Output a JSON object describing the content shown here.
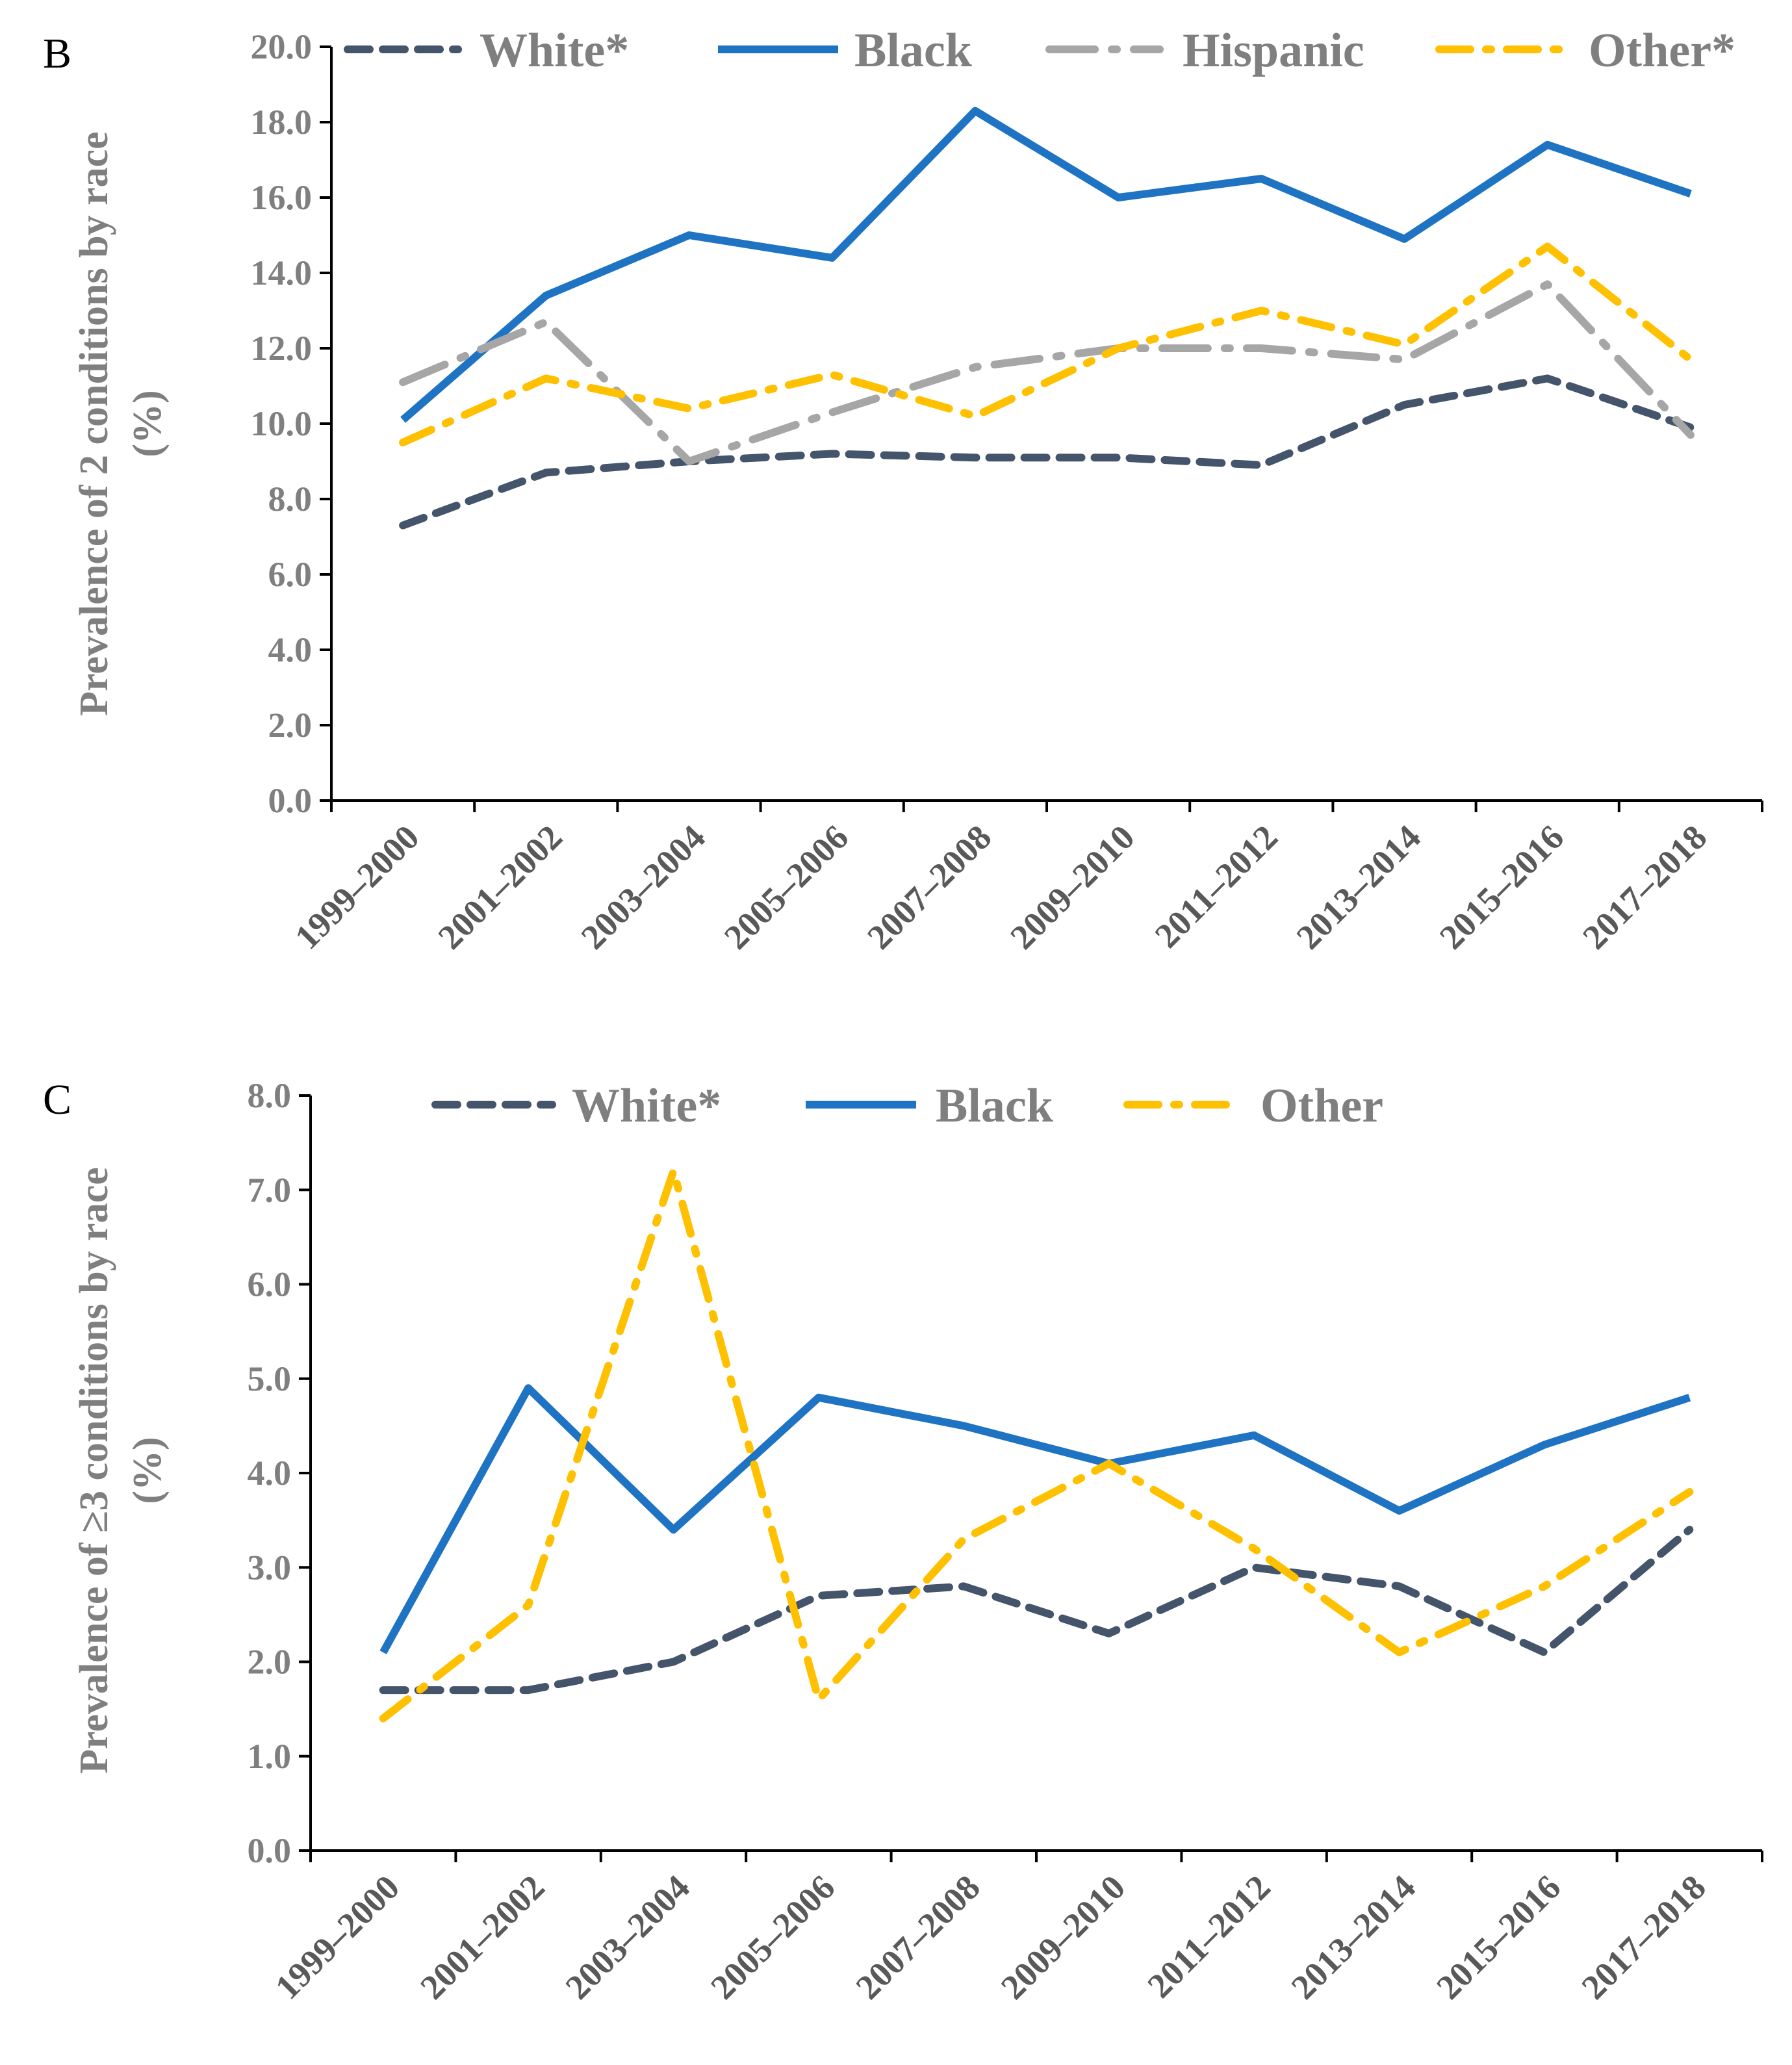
{
  "chart_data": [
    {
      "type": "line",
      "panel_label": "B",
      "title": "",
      "xlabel": "",
      "ylabel": "Prevalence of 2 conditions by race",
      "ylabel_unit": "(%)",
      "ylim": [
        0,
        20
      ],
      "y_ticks": [
        "0.0",
        "2.0",
        "4.0",
        "6.0",
        "8.0",
        "10.0",
        "12.0",
        "14.0",
        "16.0",
        "18.0",
        "20.0"
      ],
      "categories": [
        "1999–2000",
        "2001–2002",
        "2003–2004",
        "2005–2006",
        "2007–2008",
        "2009–2010",
        "2011–2012",
        "2013–2014",
        "2015–2016",
        "2017–2018"
      ],
      "grid": false,
      "legend_position": "top",
      "series": [
        {
          "name": "White*",
          "color": "#44546a",
          "style": "dash",
          "values": [
            7.3,
            8.7,
            9.0,
            9.2,
            9.1,
            9.1,
            8.9,
            10.5,
            11.2,
            9.9
          ]
        },
        {
          "name": "Black",
          "color": "#1f73c3",
          "style": "solid",
          "values": [
            10.1,
            13.4,
            15.0,
            14.4,
            18.3,
            16.0,
            16.5,
            14.9,
            17.4,
            16.1
          ]
        },
        {
          "name": "Hispanic",
          "color": "#a6a6a6",
          "style": "longdashdot",
          "values": [
            11.1,
            12.7,
            9.0,
            10.3,
            11.5,
            12.0,
            12.0,
            11.7,
            13.7,
            9.7
          ]
        },
        {
          "name": "Other*",
          "color": "#ffc000",
          "style": "dashdot",
          "values": [
            9.5,
            11.2,
            10.4,
            11.3,
            10.2,
            12.0,
            13.0,
            12.1,
            14.7,
            11.7
          ]
        }
      ]
    },
    {
      "type": "line",
      "panel_label": "C",
      "title": "",
      "xlabel": "",
      "ylabel": "Prevalence of ≥3 conditions by race",
      "ylabel_unit": "(%)",
      "ylim": [
        0,
        8
      ],
      "y_ticks": [
        "0.0",
        "1.0",
        "2.0",
        "3.0",
        "4.0",
        "5.0",
        "6.0",
        "7.0",
        "8.0"
      ],
      "categories": [
        "1999–2000",
        "2001–2002",
        "2003–2004",
        "2005–2006",
        "2007–2008",
        "2009–2010",
        "2011–2012",
        "2013–2014",
        "2015–2016",
        "2017–2018"
      ],
      "grid": false,
      "legend_position": "top",
      "series": [
        {
          "name": "White*",
          "color": "#44546a",
          "style": "dash",
          "values": [
            1.7,
            1.7,
            2.0,
            2.7,
            2.8,
            2.3,
            3.0,
            2.8,
            2.1,
            3.4
          ]
        },
        {
          "name": "Black",
          "color": "#1f73c3",
          "style": "solid",
          "values": [
            2.1,
            4.9,
            3.4,
            4.8,
            4.5,
            4.1,
            4.4,
            3.6,
            4.3,
            4.8
          ]
        },
        {
          "name": "Other",
          "color": "#ffc000",
          "style": "dashdot",
          "values": [
            1.4,
            2.6,
            7.2,
            1.6,
            3.3,
            4.1,
            3.2,
            2.1,
            2.8,
            3.8
          ]
        }
      ]
    }
  ]
}
